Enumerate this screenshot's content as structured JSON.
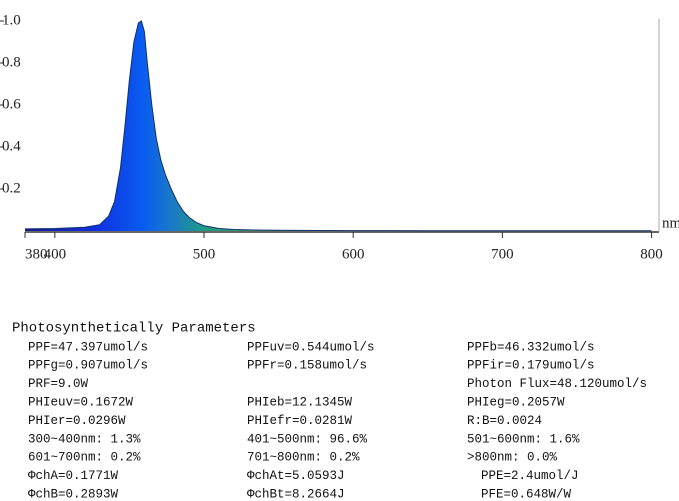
{
  "chart_data": {
    "type": "area",
    "x_label": "nm",
    "x": [
      380,
      400,
      420,
      430,
      436,
      440,
      444,
      447,
      450,
      453,
      456,
      458,
      460,
      462,
      465,
      468,
      471,
      474,
      478,
      482,
      486,
      490,
      495,
      500,
      510,
      520,
      540,
      560,
      600,
      650,
      700,
      750,
      800
    ],
    "values": [
      0.01,
      0.012,
      0.018,
      0.03,
      0.07,
      0.14,
      0.3,
      0.5,
      0.72,
      0.9,
      0.99,
      1.0,
      0.95,
      0.8,
      0.6,
      0.44,
      0.34,
      0.27,
      0.2,
      0.14,
      0.095,
      0.065,
      0.04,
      0.025,
      0.012,
      0.007,
      0.004,
      0.003,
      0.002,
      0.001,
      0.001,
      0.001,
      0.001
    ],
    "xlim": [
      380,
      805
    ],
    "ylim": [
      0,
      1.0
    ],
    "xticks": [
      380,
      400,
      500,
      600,
      700,
      800
    ],
    "yticks": [
      0.2,
      0.4,
      0.6,
      0.8,
      {
        "value": 1,
        "label": "1.0"
      }
    ]
  },
  "parameters": {
    "title": "Photosynthetically Parameters",
    "rows": [
      [
        "PPF=47.397umol/s",
        "PPFuv=0.544umol/s",
        "PPFb=46.332umol/s"
      ],
      [
        "PPFg=0.907umol/s",
        "PPFr=0.158umol/s",
        "PPFir=0.179umol/s"
      ],
      [
        "PRF=9.0W",
        null,
        "Photon Flux=48.120umol/s"
      ],
      [
        "PHIeuv=0.1672W",
        "PHIeb=12.1345W",
        "PHIeg=0.2057W"
      ],
      [
        "PHIer=0.0296W",
        "PHIefr=0.0281W",
        "R:B=0.0024"
      ],
      [
        "300~400nm: 1.3%",
        "401~500nm: 96.6%",
        "501~600nm: 1.6%"
      ],
      [
        "601~700nm: 0.2%",
        "701~800nm: 0.2%",
        ">800nm: 0.0%"
      ],
      [
        "ΦchA=0.1771W",
        "ΦchAt=5.0593J",
        "PPE=2.4umol/J"
      ],
      [
        "ΦchB=0.2893W",
        "ΦchBt=8.2664J",
        "PFE=0.648W/W"
      ]
    ]
  }
}
